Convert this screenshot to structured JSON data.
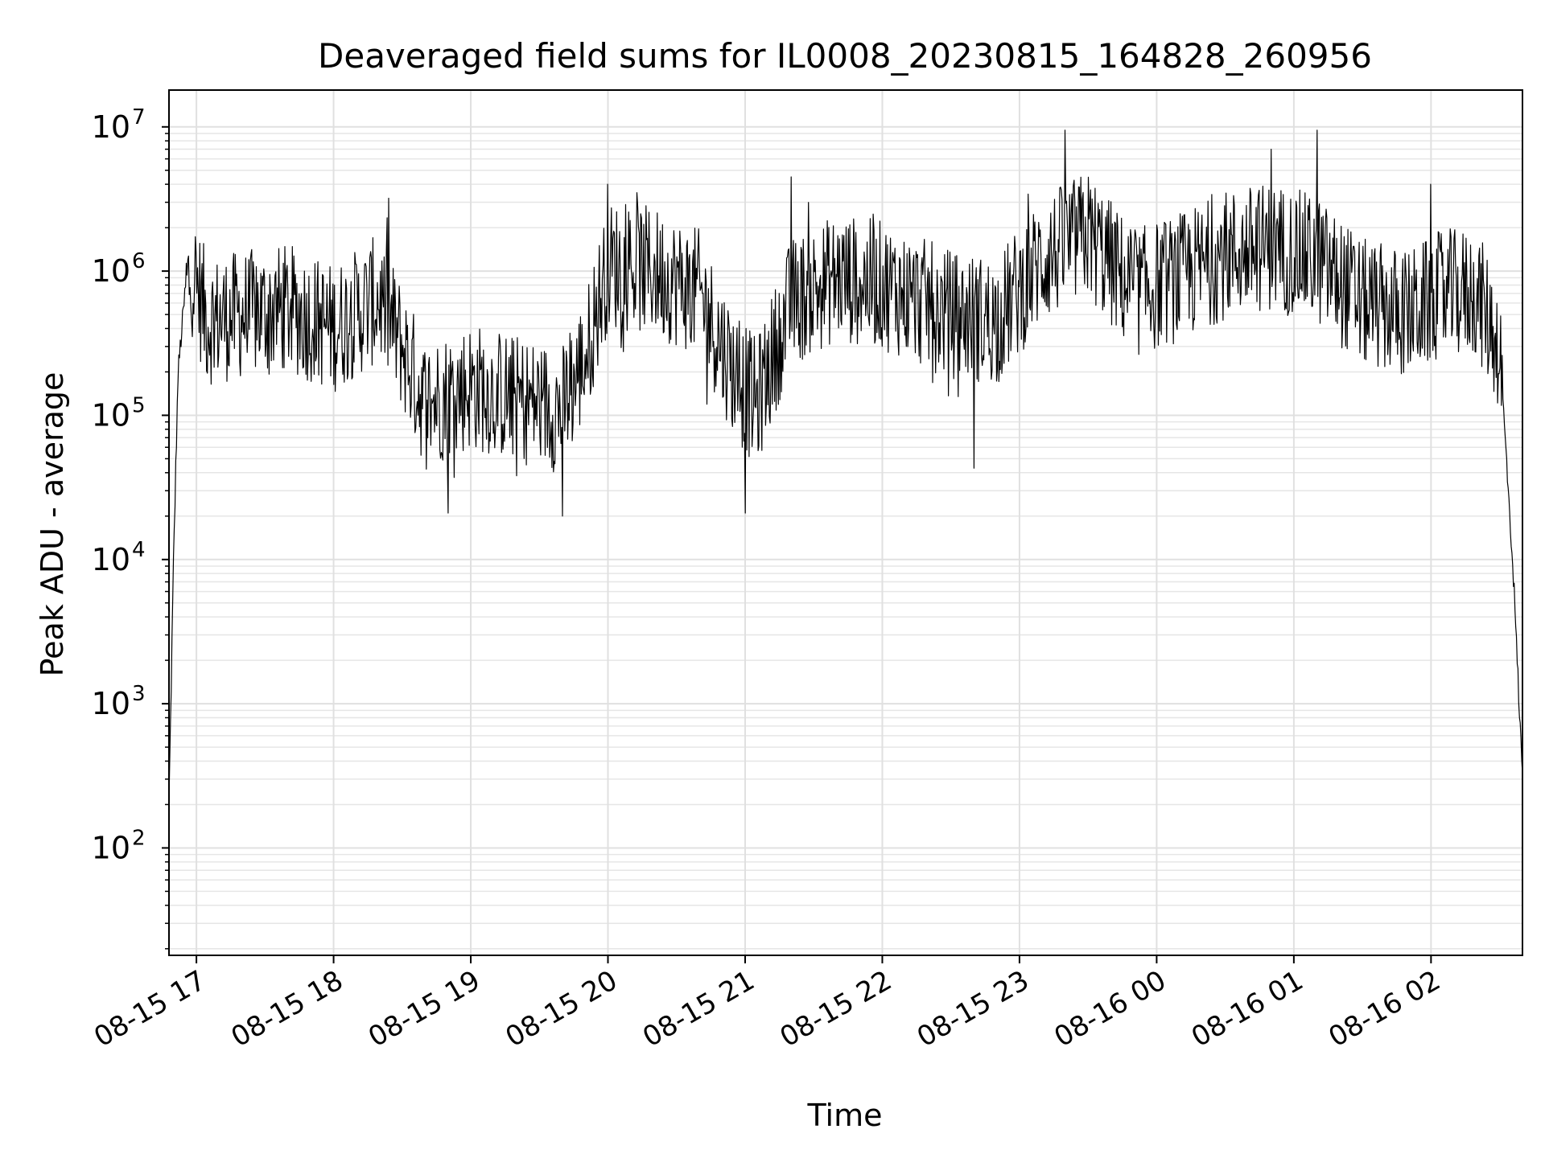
{
  "chart_data": {
    "type": "line",
    "title": "Deaveraged field sums for IL0008_20230815_164828_260956",
    "xlabel": "Time",
    "ylabel": "Peak ADU - average",
    "yscale": "log",
    "ylim": [
      18,
      18000000
    ],
    "xlim": [
      "2023-08-15 16:48",
      "2023-08-16 02:40"
    ],
    "grid": true,
    "legend": "none",
    "line_color": "#000000",
    "x_tick_labels": [
      "08-15 17",
      "08-15 18",
      "08-15 19",
      "08-15 20",
      "08-15 21",
      "08-15 22",
      "08-15 23",
      "08-16 00",
      "08-16 01",
      "08-16 02"
    ],
    "x_tick_times": [
      "2023-08-15 17:00",
      "2023-08-15 18:00",
      "2023-08-15 19:00",
      "2023-08-15 20:00",
      "2023-08-15 21:00",
      "2023-08-15 22:00",
      "2023-08-15 23:00",
      "2023-08-16 00:00",
      "2023-08-16 01:00",
      "2023-08-16 02:00"
    ],
    "y_tick_values": [
      100,
      1000,
      10000,
      100000,
      1000000,
      10000000
    ],
    "y_tick_exponents": [
      "2",
      "3",
      "4",
      "5",
      "6",
      "7"
    ],
    "y_tick_base": "10",
    "series": [
      {
        "values_kind": "approximate envelope of the dense noisy trace",
        "points": [
          {
            "x": "2023-08-15 16:48",
            "y": 200
          },
          {
            "x": "2023-08-15 16:50",
            "y": 10000
          },
          {
            "x": "2023-08-15 16:52",
            "y": 200000
          },
          {
            "x": "2023-08-15 16:55",
            "y": 700000
          },
          {
            "x": "2023-08-15 16:58",
            "y": 1000000
          },
          {
            "x": "2023-08-15 17:05",
            "y": 450000
          },
          {
            "x": "2023-08-15 17:20",
            "y": 500000
          },
          {
            "x": "2023-08-15 17:40",
            "y": 550000
          },
          {
            "x": "2023-08-15 18:00",
            "y": 400000
          },
          {
            "x": "2023-08-15 18:20",
            "y": 650000
          },
          {
            "x": "2023-08-15 18:30",
            "y": 300000
          },
          {
            "x": "2023-08-15 18:40",
            "y": 120000
          },
          {
            "x": "2023-08-15 19:00",
            "y": 160000
          },
          {
            "x": "2023-08-15 19:20",
            "y": 130000
          },
          {
            "x": "2023-08-15 19:40",
            "y": 110000
          },
          {
            "x": "2023-08-15 19:50",
            "y": 250000
          },
          {
            "x": "2023-08-15 20:00",
            "y": 1100000
          },
          {
            "x": "2023-08-15 20:20",
            "y": 1000000
          },
          {
            "x": "2023-08-15 20:40",
            "y": 700000
          },
          {
            "x": "2023-08-15 20:55",
            "y": 200000
          },
          {
            "x": "2023-08-15 21:05",
            "y": 120000
          },
          {
            "x": "2023-08-15 21:20",
            "y": 600000
          },
          {
            "x": "2023-08-15 21:40",
            "y": 900000
          },
          {
            "x": "2023-08-15 22:00",
            "y": 800000
          },
          {
            "x": "2023-08-15 22:30",
            "y": 500000
          },
          {
            "x": "2023-08-15 22:50",
            "y": 450000
          },
          {
            "x": "2023-08-15 23:10",
            "y": 1200000
          },
          {
            "x": "2023-08-15 23:30",
            "y": 1800000
          },
          {
            "x": "2023-08-15 23:50",
            "y": 700000
          },
          {
            "x": "2023-08-16 00:10",
            "y": 900000
          },
          {
            "x": "2023-08-16 00:30",
            "y": 1300000
          },
          {
            "x": "2023-08-16 00:50",
            "y": 1500000
          },
          {
            "x": "2023-08-16 01:10",
            "y": 1200000
          },
          {
            "x": "2023-08-16 01:30",
            "y": 600000
          },
          {
            "x": "2023-08-16 01:50",
            "y": 500000
          },
          {
            "x": "2023-08-16 02:05",
            "y": 700000
          },
          {
            "x": "2023-08-16 02:20",
            "y": 700000
          },
          {
            "x": "2023-08-16 02:30",
            "y": 300000
          },
          {
            "x": "2023-08-16 02:36",
            "y": 8000
          },
          {
            "x": "2023-08-16 02:40",
            "y": 300
          }
        ],
        "spikes_high": [
          {
            "x": "2023-08-15 18:24",
            "y": 3200000
          },
          {
            "x": "2023-08-15 20:00",
            "y": 4000000
          },
          {
            "x": "2023-08-15 21:20",
            "y": 4500000
          },
          {
            "x": "2023-08-15 23:20",
            "y": 9500000
          },
          {
            "x": "2023-08-16 00:50",
            "y": 7000000
          },
          {
            "x": "2023-08-16 01:10",
            "y": 9500000
          },
          {
            "x": "2023-08-16 02:00",
            "y": 4000000
          }
        ],
        "spikes_low": [
          {
            "x": "2023-08-15 18:50",
            "y": 21000
          },
          {
            "x": "2023-08-15 19:40",
            "y": 20000
          },
          {
            "x": "2023-08-15 21:00",
            "y": 21000
          },
          {
            "x": "2023-08-15 22:40",
            "y": 43000
          }
        ]
      }
    ]
  }
}
